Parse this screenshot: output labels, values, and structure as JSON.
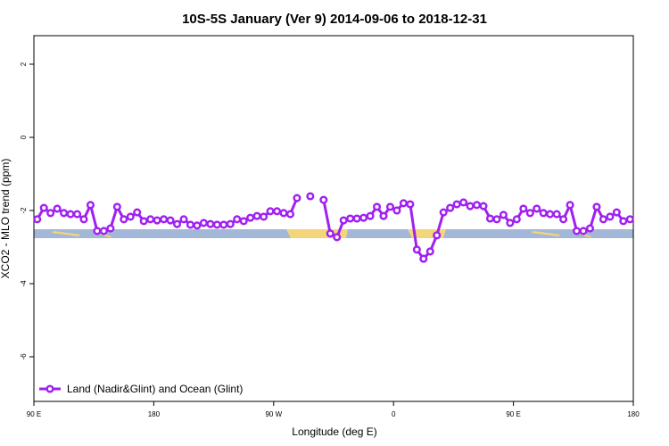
{
  "chart_data": {
    "type": "line",
    "title": "10S-5S January (Ver 9)   2014-09-06 to 2018-12-31",
    "x_label": "Longitude (deg E)",
    "y_label": "XCO2 - MLO trend (ppm)",
    "x": [
      92.5,
      97.5,
      102.5,
      107.5,
      112.5,
      117.5,
      122.5,
      127.5,
      132.5,
      137.5,
      142.5,
      147.5,
      152.5,
      157.5,
      162.5,
      167.5,
      172.5,
      177.5,
      182.5,
      187.5,
      192.5,
      197.5,
      202.5,
      207.5,
      212.5,
      217.5,
      222.5,
      227.5,
      232.5,
      237.5,
      242.5,
      247.5,
      252.5,
      257.5,
      262.5,
      267.5,
      272.5,
      277.5,
      282.5,
      287.5,
      292.5,
      297.5,
      302.5,
      307.5,
      312.5,
      317.5,
      322.5,
      327.5,
      332.5,
      337.5,
      342.5,
      347.5,
      352.5,
      357.5,
      362.5,
      367.5,
      372.5,
      377.5,
      382.5,
      387.5,
      392.5,
      397.5,
      402.5,
      407.5,
      412.5,
      417.5,
      422.5,
      427.5,
      432.5,
      437.5,
      442.5,
      447.5,
      452.5,
      457.5,
      462.5,
      467.5,
      472.5,
      477.5,
      482.5,
      487.5,
      492.5,
      497.5,
      502.5,
      507.5,
      512.5,
      517.5,
      522.5,
      527.5,
      532.5,
      537.5
    ],
    "series": [
      {
        "name": "Land (Nadir&Glint) and Ocean (Glint)",
        "color": "#a020f0",
        "values": [
          -2.24,
          -1.93,
          -2.07,
          -1.95,
          -2.07,
          -2.1,
          -2.1,
          -2.24,
          -1.85,
          -2.56,
          -2.56,
          -2.49,
          -1.9,
          -2.24,
          -2.17,
          -2.05,
          -2.29,
          -2.24,
          -2.27,
          -2.24,
          -2.27,
          -2.37,
          -2.24,
          -2.39,
          -2.41,
          -2.34,
          -2.37,
          -2.39,
          -2.39,
          -2.37,
          -2.24,
          -2.29,
          -2.2,
          -2.15,
          -2.17,
          -2.02,
          -2.02,
          -2.07,
          -2.1,
          -1.66,
          null,
          -1.61,
          null,
          -1.71,
          -2.63,
          -2.73,
          -2.27,
          -2.22,
          -2.22,
          -2.2,
          -2.15,
          -1.9,
          -2.15,
          -1.9,
          -2.0,
          -1.8,
          -1.83,
          -3.07,
          -3.32,
          -3.12,
          -2.68,
          -2.05,
          -1.93,
          -1.83,
          -1.78,
          -1.88,
          -1.85,
          -1.88,
          -2.22,
          -2.24,
          -2.12,
          -2.34,
          -2.24,
          -1.95,
          -2.07,
          -1.95,
          -2.07,
          -2.1,
          -2.1,
          -2.24,
          -1.85,
          -2.56,
          -2.56,
          -2.49,
          -1.9,
          -2.24,
          -2.17,
          -2.05,
          -2.29,
          -2.24
        ]
      }
    ],
    "xlim": [
      90,
      540
    ],
    "xticks": [
      {
        "value": 90,
        "label": "90 E"
      },
      180,
      {
        "value": 270,
        "label": "90 W"
      },
      {
        "value": 360,
        "label": "0"
      },
      {
        "value": 450,
        "label": "90 E"
      },
      {
        "value": 540,
        "label": "180"
      }
    ],
    "ylim": [
      -7.22,
      2.78
    ],
    "yticks": [
      2,
      0,
      -2,
      -4,
      -6
    ],
    "legend": "bottom-left"
  }
}
